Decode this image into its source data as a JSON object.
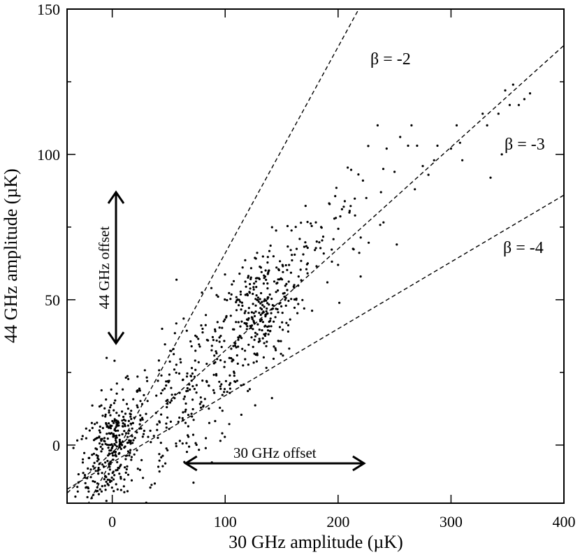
{
  "chart_data": {
    "type": "scatter",
    "title": "",
    "xlabel": "30 GHz amplitude (µK)",
    "ylabel": "44 GHz amplitude (µK)",
    "xlim": [
      -40,
      400
    ],
    "ylim": [
      -20,
      150
    ],
    "xticks": [
      0,
      100,
      200,
      300,
      400
    ],
    "yticks": [
      0,
      50,
      100,
      150
    ],
    "xtick_labels": [
      "0",
      "100",
      "200",
      "300",
      "400"
    ],
    "ytick_labels": [
      "0",
      "50",
      "100",
      "150"
    ],
    "grid": false,
    "lines": [
      {
        "label": "β = -2",
        "slope": 0.71,
        "intercept": -5,
        "style": "dashed"
      },
      {
        "label": "β = -3",
        "slope": 0.35,
        "intercept": -2.5,
        "style": "dashed"
      },
      {
        "label": "β = -4",
        "slope": 0.23,
        "intercept": -6,
        "style": "dashed"
      }
    ],
    "annotations": {
      "y_offset": {
        "label": "44 GHz offset",
        "x": 5,
        "y_from": 35,
        "y_to": 87
      },
      "x_offset": {
        "label": "30 GHz offset",
        "y": -5,
        "x_from": 70,
        "x_to": 218
      }
    },
    "scatter_clusters": [
      {
        "cx": 0,
        "cy": -1,
        "sx": 15,
        "sy": 9,
        "n": 340
      },
      {
        "cx": 70,
        "cy": 18,
        "sx": 30,
        "sy": 13,
        "n": 240
      },
      {
        "cx": 130,
        "cy": 46,
        "sx": 18,
        "sy": 11,
        "n": 300
      },
      {
        "cx": 190,
        "cy": 72,
        "sx": 22,
        "sy": 10,
        "n": 60
      }
    ],
    "scatter_points": [
      [
        -20,
        5
      ],
      [
        -5,
        30
      ],
      [
        2,
        29
      ],
      [
        55,
        26
      ],
      [
        80,
        40
      ],
      [
        95,
        37
      ],
      [
        163,
        50
      ],
      [
        165,
        58
      ],
      [
        170,
        47
      ],
      [
        185,
        75
      ],
      [
        200,
        62
      ],
      [
        205,
        82
      ],
      [
        210,
        80
      ],
      [
        215,
        79
      ],
      [
        222,
        91
      ],
      [
        225,
        85
      ],
      [
        220,
        58
      ],
      [
        235,
        110
      ],
      [
        238,
        87
      ],
      [
        240,
        95
      ],
      [
        243,
        102
      ],
      [
        250,
        94
      ],
      [
        252,
        69
      ],
      [
        255,
        106
      ],
      [
        262,
        103
      ],
      [
        265,
        110
      ],
      [
        270,
        103
      ],
      [
        268,
        88
      ],
      [
        275,
        96
      ],
      [
        280,
        93
      ],
      [
        285,
        98
      ],
      [
        288,
        103
      ],
      [
        300,
        102
      ],
      [
        305,
        110
      ],
      [
        308,
        104
      ],
      [
        310,
        98
      ],
      [
        328,
        114
      ],
      [
        332,
        110
      ],
      [
        335,
        92
      ],
      [
        342,
        114
      ],
      [
        345,
        100
      ],
      [
        348,
        122
      ],
      [
        352,
        117
      ],
      [
        355,
        124
      ],
      [
        360,
        117
      ],
      [
        365,
        119
      ],
      [
        370,
        121
      ]
    ]
  }
}
